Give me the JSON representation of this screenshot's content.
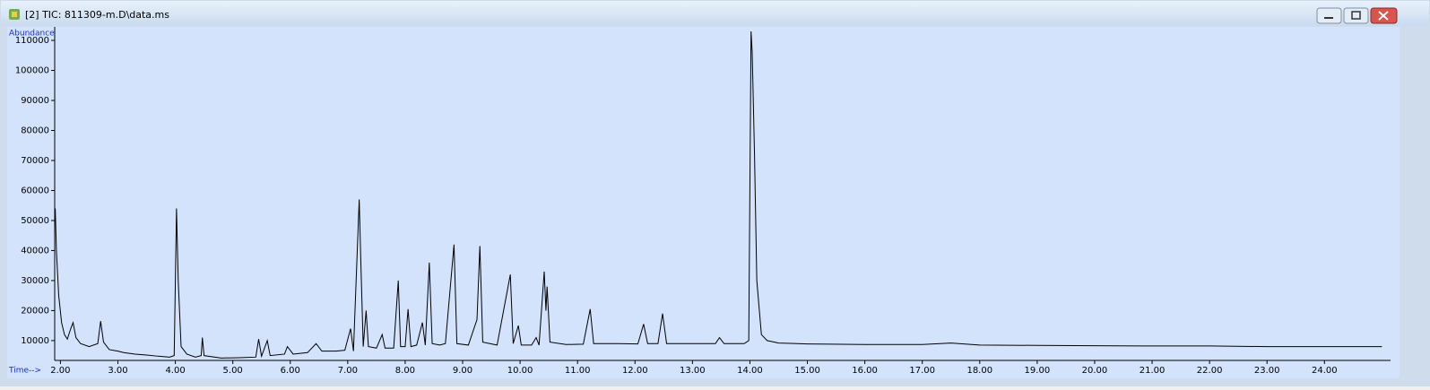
{
  "window": {
    "title": "[2] TIC: 811309-m.D\\data.ms"
  },
  "chart_data": {
    "type": "line",
    "y_label": "Abundance",
    "x_label": "Time-->",
    "background": "#d3e3fb",
    "xlim": [
      1.9,
      25.15
    ],
    "ylim": [
      3400,
      113600
    ],
    "xticks": [
      {
        "value": 2,
        "label": "2.00"
      },
      {
        "value": 3,
        "label": "3.00"
      },
      {
        "value": 4,
        "label": "4.00"
      },
      {
        "value": 5,
        "label": "5.00"
      },
      {
        "value": 6,
        "label": "6.00"
      },
      {
        "value": 7,
        "label": "7.00"
      },
      {
        "value": 8,
        "label": "8.00"
      },
      {
        "value": 9,
        "label": "9.00"
      },
      {
        "value": 10,
        "label": "10.00"
      },
      {
        "value": 11,
        "label": "11.00"
      },
      {
        "value": 12,
        "label": "12.00"
      },
      {
        "value": 13,
        "label": "13.00"
      },
      {
        "value": 14,
        "label": "14.00"
      },
      {
        "value": 15,
        "label": "15.00"
      },
      {
        "value": 16,
        "label": "16.00"
      },
      {
        "value": 17,
        "label": "17.00"
      },
      {
        "value": 18,
        "label": "18.00"
      },
      {
        "value": 19,
        "label": "19.00"
      },
      {
        "value": 20,
        "label": "20.00"
      },
      {
        "value": 21,
        "label": "21.00"
      },
      {
        "value": 22,
        "label": "22.00"
      },
      {
        "value": 23,
        "label": "23.00"
      },
      {
        "value": 24,
        "label": "24.00"
      }
    ],
    "yticks": [
      10000,
      20000,
      30000,
      40000,
      50000,
      60000,
      70000,
      80000,
      90000,
      100000,
      110000
    ],
    "series": [
      {
        "color": "#000000",
        "x": [
          1.91,
          1.93,
          1.97,
          2.02,
          2.07,
          2.12,
          2.18,
          2.22,
          2.27,
          2.35,
          2.5,
          2.65,
          2.7,
          2.75,
          2.85,
          3.0,
          3.1,
          3.3,
          3.5,
          3.7,
          3.9,
          3.98,
          4.02,
          4.05,
          4.1,
          4.2,
          4.35,
          4.45,
          4.47,
          4.5,
          4.8,
          5.1,
          5.4,
          5.45,
          5.5,
          5.6,
          5.65,
          5.9,
          5.95,
          6.05,
          6.3,
          6.45,
          6.55,
          6.8,
          6.95,
          7.05,
          7.1,
          7.2,
          7.23,
          7.27,
          7.32,
          7.36,
          7.5,
          7.6,
          7.65,
          7.8,
          7.88,
          7.92,
          8.0,
          8.05,
          8.1,
          8.2,
          8.3,
          8.35,
          8.42,
          8.47,
          8.6,
          8.7,
          8.85,
          8.9,
          9.1,
          9.25,
          9.3,
          9.35,
          9.6,
          9.83,
          9.88,
          9.97,
          10.02,
          10.2,
          10.28,
          10.33,
          10.42,
          10.45,
          10.47,
          10.52,
          10.8,
          11.1,
          11.22,
          11.28,
          11.7,
          12.05,
          12.15,
          12.22,
          12.4,
          12.48,
          12.55,
          13.0,
          13.4,
          13.47,
          13.55,
          13.9,
          13.98,
          14.02,
          14.04,
          14.08,
          14.12,
          14.2,
          14.3,
          14.5,
          15.0,
          16.0,
          17.0,
          17.5,
          18.0,
          19.0,
          20.0,
          21.0,
          22.0,
          23.0,
          24.0,
          25.0
        ],
        "values": [
          54000,
          40000,
          25000,
          16000,
          12000,
          10500,
          14000,
          16000,
          11000,
          9000,
          8000,
          9000,
          16500,
          9500,
          7000,
          6500,
          6000,
          5500,
          5200,
          4800,
          4500,
          5000,
          54000,
          30000,
          8000,
          5500,
          4500,
          5000,
          11000,
          5000,
          4200,
          4300,
          4500,
          10500,
          4800,
          10000,
          5000,
          5500,
          8000,
          5500,
          6000,
          9000,
          6500,
          6500,
          6800,
          14000,
          6500,
          57000,
          35000,
          8000,
          20000,
          8000,
          7500,
          12000,
          7500,
          7500,
          30000,
          8000,
          8000,
          20500,
          8000,
          8500,
          16000,
          8500,
          36000,
          9000,
          8500,
          9000,
          42000,
          9000,
          8500,
          17000,
          41500,
          9500,
          8500,
          32000,
          9000,
          15000,
          8500,
          8500,
          11000,
          8500,
          33000,
          20000,
          28000,
          9500,
          8700,
          8800,
          20500,
          9000,
          9000,
          8900,
          15500,
          9000,
          9000,
          19000,
          9000,
          9000,
          9000,
          11000,
          9000,
          9000,
          10000,
          113000,
          106000,
          72000,
          30000,
          12000,
          10000,
          9200,
          8900,
          8700,
          8700,
          9200,
          8500,
          8400,
          8300,
          8200,
          8200,
          8000,
          8000,
          8000
        ]
      }
    ]
  }
}
